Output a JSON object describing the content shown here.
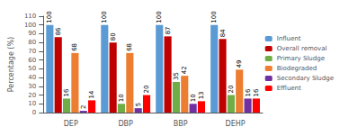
{
  "chart_data": {
    "type": "bar",
    "categories": [
      "DEP",
      "DBP",
      "BBP",
      "DEHP"
    ],
    "series": [
      {
        "name": "Influent",
        "color": "#5b9bd5",
        "values": [
          100,
          100,
          100,
          100
        ]
      },
      {
        "name": "Overall removal",
        "color": "#c00000",
        "values": [
          86,
          80,
          87,
          84
        ]
      },
      {
        "name": "Primary Sludge",
        "color": "#70ad47",
        "values": [
          16,
          10,
          35,
          20
        ]
      },
      {
        "name": "Biodegraded",
        "color": "#ed7d31",
        "values": [
          68,
          68,
          42,
          49
        ]
      },
      {
        "name": "Secondary Sludge",
        "color": "#7030a0",
        "values": [
          2,
          5,
          10,
          16
        ]
      },
      {
        "name": "Effluent",
        "color": "#ff0000",
        "values": [
          14,
          20,
          13,
          16
        ]
      }
    ],
    "ylabel": "Percentage (%)",
    "ylim": [
      0,
      110
    ],
    "yticks": [
      0,
      10,
      20,
      30,
      40,
      50,
      60,
      70,
      80,
      90,
      100,
      110
    ],
    "grid": false,
    "legend": "right",
    "data_labels": true
  }
}
